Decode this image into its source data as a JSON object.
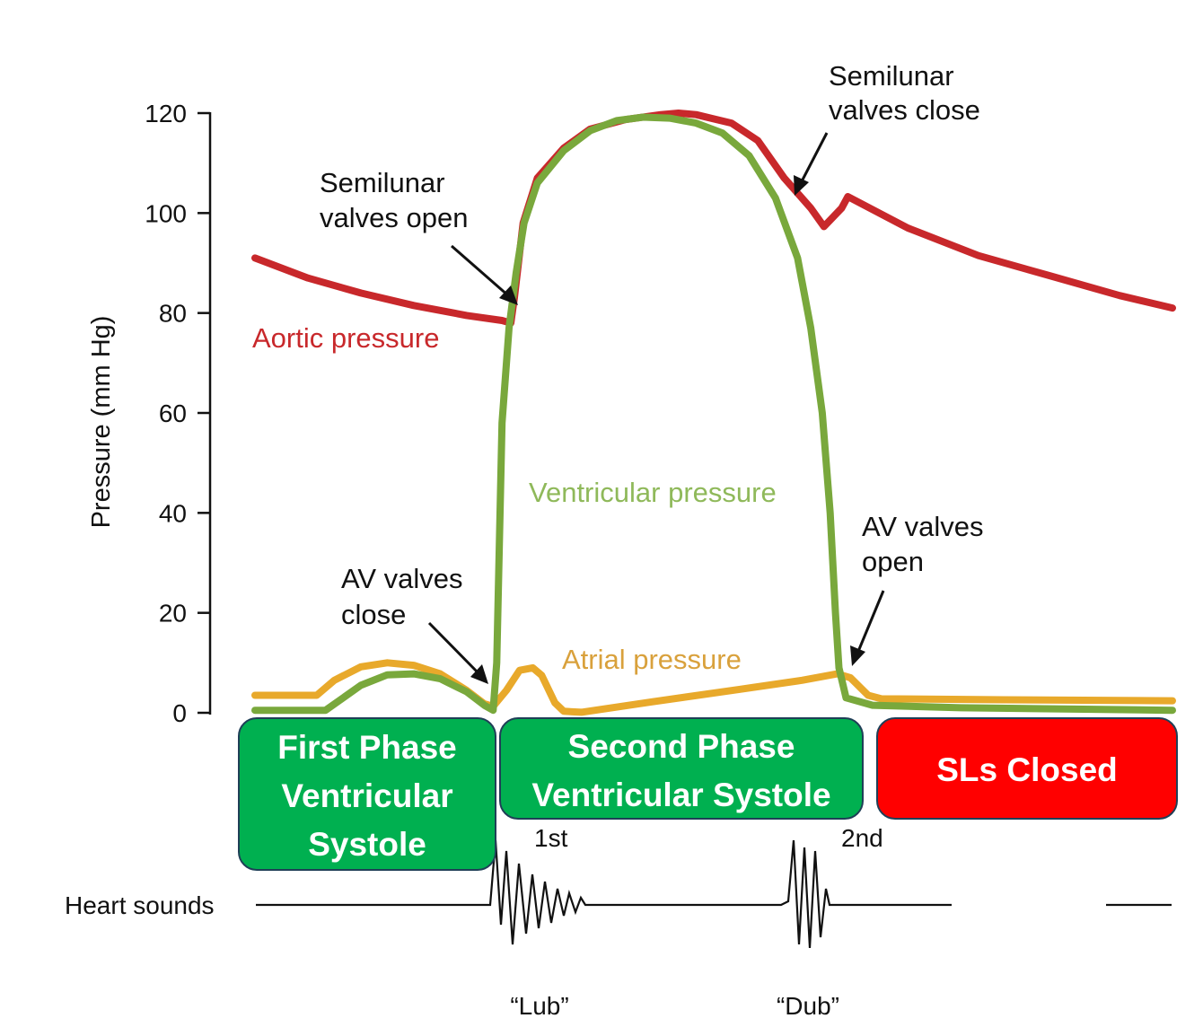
{
  "chart_data": {
    "type": "line",
    "ylabel": "Pressure (mm Hg)",
    "ylim": [
      0,
      120
    ],
    "yticks": [
      0,
      20,
      40,
      60,
      80,
      100,
      120
    ],
    "series": [
      {
        "name": "Aortic pressure",
        "color": "#c8282b",
        "points": [
          [
            0,
            91
          ],
          [
            6,
            87
          ],
          [
            12,
            84
          ],
          [
            18,
            81.5
          ],
          [
            24,
            79.5
          ],
          [
            28,
            78.5
          ],
          [
            29,
            78
          ],
          [
            29.4,
            83
          ],
          [
            30.4,
            98
          ],
          [
            32,
            107
          ],
          [
            35,
            113
          ],
          [
            38,
            116.8
          ],
          [
            42,
            118.7
          ],
          [
            46,
            119.7
          ],
          [
            48,
            120
          ],
          [
            50,
            119.7
          ],
          [
            54,
            118
          ],
          [
            57,
            114.5
          ],
          [
            60,
            107
          ],
          [
            63,
            101
          ],
          [
            64.5,
            97.3
          ],
          [
            66.5,
            101
          ],
          [
            67.2,
            103.3
          ],
          [
            74,
            97
          ],
          [
            82,
            91.5
          ],
          [
            90,
            87.5
          ],
          [
            98,
            83.5
          ],
          [
            104,
            81
          ]
        ]
      },
      {
        "name": "Ventricular pressure",
        "color": "#79a83c",
        "points": [
          [
            0,
            0.5
          ],
          [
            8,
            0.5
          ],
          [
            12,
            5.5
          ],
          [
            15,
            7.6
          ],
          [
            18,
            7.8
          ],
          [
            21,
            6.8
          ],
          [
            24,
            4.2
          ],
          [
            26,
            1.5
          ],
          [
            27,
            0.5
          ],
          [
            27.4,
            10
          ],
          [
            28,
            58
          ],
          [
            28.8,
            77
          ],
          [
            29.6,
            88
          ],
          [
            30.5,
            98
          ],
          [
            32,
            106
          ],
          [
            35,
            112.5
          ],
          [
            38,
            116.5
          ],
          [
            41,
            118.5
          ],
          [
            44,
            119.2
          ],
          [
            47,
            119
          ],
          [
            50,
            118
          ],
          [
            53,
            116
          ],
          [
            56,
            111.5
          ],
          [
            59,
            103
          ],
          [
            61.5,
            91
          ],
          [
            63,
            77
          ],
          [
            64.3,
            60
          ],
          [
            65.2,
            40
          ],
          [
            65.8,
            20
          ],
          [
            66.2,
            9
          ],
          [
            67,
            3
          ],
          [
            70,
            1.5
          ],
          [
            80,
            1
          ],
          [
            104,
            0.5
          ]
        ]
      },
      {
        "name": "Atrial pressure",
        "color": "#e8a92b",
        "points": [
          [
            0,
            3.5
          ],
          [
            7,
            3.5
          ],
          [
            9,
            6.5
          ],
          [
            12,
            9.2
          ],
          [
            15,
            10
          ],
          [
            18,
            9.5
          ],
          [
            21,
            7.8
          ],
          [
            24,
            4.5
          ],
          [
            26,
            1.8
          ],
          [
            27,
            1.3
          ],
          [
            28.5,
            4.5
          ],
          [
            30,
            8.5
          ],
          [
            31.5,
            9
          ],
          [
            32.5,
            7.5
          ],
          [
            34,
            2
          ],
          [
            35,
            0.3
          ],
          [
            37,
            0.1
          ],
          [
            45,
            2.2
          ],
          [
            55,
            4.7
          ],
          [
            62,
            6.5
          ],
          [
            66,
            7.8
          ],
          [
            67.5,
            7
          ],
          [
            69.5,
            3.5
          ],
          [
            71,
            2.8
          ],
          [
            85,
            2.6
          ],
          [
            104,
            2.4
          ]
        ]
      }
    ],
    "annotations": [
      {
        "lines": [
          "Semilunar",
          "valves open"
        ]
      },
      {
        "lines": [
          "Semilunar",
          "valves close"
        ]
      },
      {
        "lines": [
          "AV valves",
          "close"
        ]
      },
      {
        "lines": [
          "AV valves",
          "open"
        ]
      }
    ],
    "heart_sounds": {
      "label": "Heart sounds",
      "first_label": "1st",
      "second_label": "2nd",
      "first_name": "“Lub”",
      "second_name": "“Dub”"
    },
    "phase_boxes": [
      {
        "lines": [
          "First Phase",
          "Ventricular",
          "Systole"
        ],
        "color": "#00b050"
      },
      {
        "lines": [
          "Second Phase",
          "Ventricular Systole"
        ],
        "color": "#00b050"
      },
      {
        "lines": [
          "SLs Closed"
        ],
        "color": "#ff0000"
      }
    ]
  }
}
